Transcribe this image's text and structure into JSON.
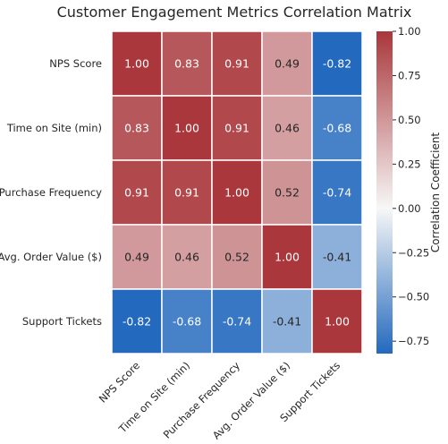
{
  "chart_data": {
    "type": "heatmap",
    "title": "Customer Engagement Metrics Correlation Matrix",
    "rows": [
      "NPS Score",
      "Time on Site (min)",
      "Purchase Frequency",
      "Avg. Order Value ($)",
      "Support Tickets"
    ],
    "columns": [
      "NPS Score",
      "Time on Site (min)",
      "Purchase Frequency",
      "Avg. Order Value ($)",
      "Support Tickets"
    ],
    "values": [
      [
        1.0,
        0.83,
        0.91,
        0.49,
        -0.82
      ],
      [
        0.83,
        1.0,
        0.91,
        0.46,
        -0.68
      ],
      [
        0.91,
        0.91,
        1.0,
        0.52,
        -0.74
      ],
      [
        0.49,
        0.46,
        0.52,
        1.0,
        -0.41
      ],
      [
        -0.82,
        -0.68,
        -0.74,
        -0.41,
        1.0
      ]
    ],
    "cell_labels": [
      [
        "1.00",
        "0.83",
        "0.91",
        "0.49",
        "-0.82"
      ],
      [
        "0.83",
        "1.00",
        "0.91",
        "0.46",
        "-0.68"
      ],
      [
        "0.91",
        "0.91",
        "1.00",
        "0.52",
        "-0.74"
      ],
      [
        "0.49",
        "0.46",
        "0.52",
        "1.00",
        "-0.41"
      ],
      [
        "-0.82",
        "-0.68",
        "-0.74",
        "-0.41",
        "1.00"
      ]
    ],
    "colorbar": {
      "label": "Correlation Coefficient",
      "range": [
        -0.82,
        1.0
      ],
      "ticks": [
        1.0,
        0.75,
        0.5,
        0.25,
        0.0,
        -0.25,
        -0.5,
        -0.75
      ],
      "tick_labels": [
        "1.00",
        "0.75",
        "0.50",
        "0.25",
        "0.00",
        "−0.25",
        "−0.50",
        "−0.75"
      ],
      "colormap": "vlag (blue-white-red)",
      "low_color": "#2369bd",
      "mid_color": "#f7f7f7",
      "high_color": "#a9373b"
    },
    "grid_lines": true,
    "grid_color": "#ffffff"
  }
}
